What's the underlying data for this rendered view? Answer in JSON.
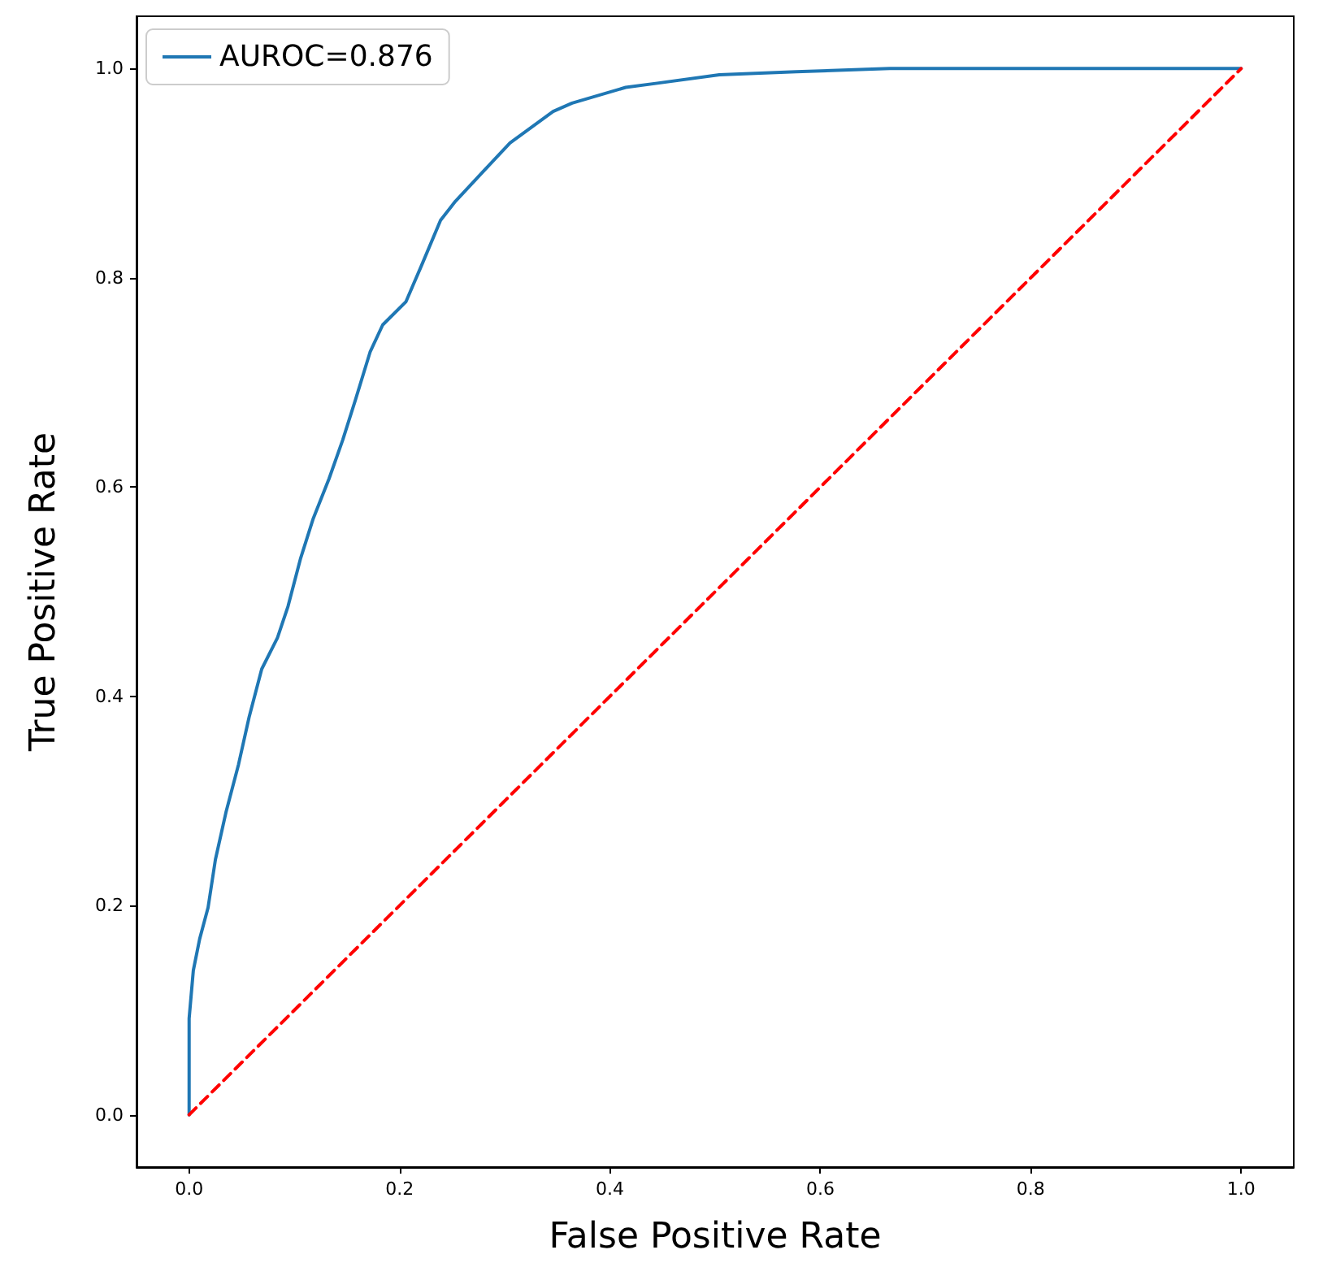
{
  "chart_data": {
    "type": "line",
    "xlabel": "False Positive Rate",
    "ylabel": "True Positive Rate",
    "xlim": [
      -0.05,
      1.05
    ],
    "ylim": [
      -0.05,
      1.05
    ],
    "xticks": [
      {
        "value": 0,
        "label": "0.0"
      },
      {
        "value": 0.2,
        "label": "0.2"
      },
      {
        "value": 0.4,
        "label": "0.4"
      },
      {
        "value": 0.6,
        "label": "0.6"
      },
      {
        "value": 0.8,
        "label": "0.8"
      },
      {
        "value": 1,
        "label": "1.0"
      }
    ],
    "yticks": [
      {
        "value": 0,
        "label": "0.0"
      },
      {
        "value": 0.2,
        "label": "0.2"
      },
      {
        "value": 0.4,
        "label": "0.4"
      },
      {
        "value": 0.6,
        "label": "0.6"
      },
      {
        "value": 0.8,
        "label": "0.8"
      },
      {
        "value": 1,
        "label": "1.0"
      }
    ],
    "legend": "top left",
    "marker": "none",
    "series": [
      {
        "name": "AUROC=0.876",
        "color": "#1f77b4",
        "line_style": "solid",
        "x": [
          0,
          0,
          0.004,
          0.01,
          0.018,
          0.025,
          0.035,
          0.047,
          0.057,
          0.069,
          0.084,
          0.094,
          0.106,
          0.118,
          0.133,
          0.146,
          0.158,
          0.172,
          0.184,
          0.206,
          0.221,
          0.239,
          0.253,
          0.278,
          0.305,
          0.346,
          0.364,
          0.415,
          0.445,
          0.504,
          0.577,
          0.666,
          1
        ],
        "values": [
          0,
          0.092,
          0.138,
          0.168,
          0.198,
          0.244,
          0.289,
          0.335,
          0.38,
          0.426,
          0.456,
          0.486,
          0.532,
          0.57,
          0.608,
          0.645,
          0.683,
          0.729,
          0.755,
          0.777,
          0.812,
          0.855,
          0.873,
          0.9,
          0.929,
          0.959,
          0.967,
          0.982,
          0.986,
          0.994,
          0.997,
          1,
          1
        ]
      },
      {
        "color": "#ff0000",
        "line_style": "dashed",
        "x": [
          0,
          1
        ],
        "values": [
          0,
          1
        ]
      }
    ]
  }
}
